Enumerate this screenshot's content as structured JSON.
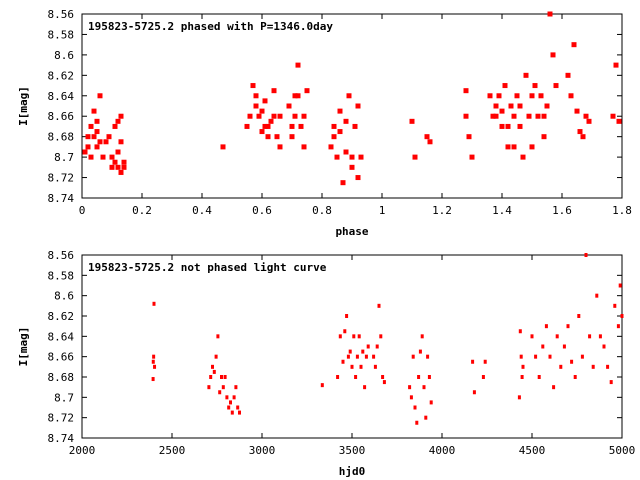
{
  "chart_data": [
    {
      "type": "scatter",
      "title": "195823-5725.2 phased with P=1346.0day",
      "xlabel": "phase",
      "ylabel": "I[mag]",
      "xlim": [
        0,
        1.8
      ],
      "ylim": [
        8.74,
        8.56
      ],
      "y_inverted": true,
      "xticks": [
        "0",
        "0.2",
        "0.4",
        "0.6",
        "0.8",
        "1",
        "1.2",
        "1.4",
        "1.6",
        "1.8"
      ],
      "yticks": [
        "8.56",
        "8.58",
        "8.6",
        "8.62",
        "8.64",
        "8.66",
        "8.68",
        "8.7",
        "8.72",
        "8.74"
      ],
      "grid": false,
      "marker": "filled-square",
      "color": "#ff0000",
      "series": [
        {
          "x": [
            0.01,
            0.02,
            0.02,
            0.03,
            0.03,
            0.04,
            0.04,
            0.05,
            0.05,
            0.05,
            0.06,
            0.06,
            0.07,
            0.08,
            0.09,
            0.1,
            0.1,
            0.11,
            0.11,
            0.12,
            0.12,
            0.12,
            0.13,
            0.13,
            0.13,
            0.14,
            0.14,
            0.47,
            0.55,
            0.56,
            0.57,
            0.58,
            0.58,
            0.59,
            0.6,
            0.6,
            0.61,
            0.61,
            0.62,
            0.62,
            0.63,
            0.64,
            0.64,
            0.65,
            0.66,
            0.66,
            0.69,
            0.7,
            0.7,
            0.71,
            0.71,
            0.72,
            0.72,
            0.73,
            0.74,
            0.74,
            0.75,
            0.83,
            0.84,
            0.84,
            0.85,
            0.86,
            0.86,
            0.87,
            0.88,
            0.88,
            0.89,
            0.9,
            0.9,
            0.91,
            0.92,
            0.92,
            0.93,
            1.1,
            1.11,
            1.15,
            1.16,
            1.28,
            1.28,
            1.29,
            1.3,
            1.36,
            1.37,
            1.38,
            1.38,
            1.39,
            1.4,
            1.4,
            1.41,
            1.42,
            1.42,
            1.43,
            1.44,
            1.44,
            1.45,
            1.46,
            1.46,
            1.47,
            1.48,
            1.49,
            1.5,
            1.5,
            1.51,
            1.52,
            1.53,
            1.54,
            1.54,
            1.55,
            1.56,
            1.57,
            1.58,
            1.62,
            1.63,
            1.64,
            1.65,
            1.66,
            1.67,
            1.68,
            1.69,
            1.77,
            1.78,
            1.79
          ],
          "y": [
            8.695,
            8.69,
            8.68,
            8.67,
            8.7,
            8.655,
            8.68,
            8.675,
            8.665,
            8.69,
            8.64,
            8.685,
            8.7,
            8.685,
            8.68,
            8.7,
            8.71,
            8.67,
            8.705,
            8.695,
            8.665,
            8.71,
            8.66,
            8.685,
            8.715,
            8.705,
            8.71,
            8.69,
            8.67,
            8.66,
            8.63,
            8.65,
            8.64,
            8.66,
            8.655,
            8.675,
            8.67,
            8.645,
            8.67,
            8.68,
            8.665,
            8.635,
            8.66,
            8.68,
            8.66,
            8.69,
            8.65,
            8.67,
            8.68,
            8.64,
            8.66,
            8.61,
            8.64,
            8.67,
            8.66,
            8.69,
            8.635,
            8.69,
            8.67,
            8.68,
            8.7,
            8.655,
            8.675,
            8.725,
            8.665,
            8.695,
            8.64,
            8.7,
            8.71,
            8.67,
            8.72,
            8.65,
            8.7,
            8.665,
            8.7,
            8.68,
            8.685,
            8.635,
            8.66,
            8.68,
            8.7,
            8.64,
            8.66,
            8.66,
            8.65,
            8.64,
            8.67,
            8.655,
            8.63,
            8.67,
            8.69,
            8.65,
            8.66,
            8.69,
            8.64,
            8.67,
            8.65,
            8.7,
            8.62,
            8.66,
            8.64,
            8.69,
            8.63,
            8.66,
            8.64,
            8.68,
            8.66,
            8.65,
            8.56,
            8.6,
            8.63,
            8.62,
            8.64,
            8.59,
            8.655,
            8.675,
            8.68,
            8.66,
            8.665,
            8.66,
            8.61,
            8.665
          ]
        }
      ]
    },
    {
      "type": "scatter",
      "title": "195823-5725.2 not phased light curve",
      "xlabel": "hjd0",
      "ylabel": "I[mag]",
      "xlim": [
        2000,
        5000
      ],
      "ylim": [
        8.74,
        8.56
      ],
      "y_inverted": true,
      "xticks": [
        "2000",
        "2500",
        "3000",
        "3500",
        "4000",
        "4500",
        "5000"
      ],
      "yticks": [
        "8.56",
        "8.58",
        "8.6",
        "8.62",
        "8.64",
        "8.66",
        "8.68",
        "8.7",
        "8.72",
        "8.74"
      ],
      "grid": false,
      "marker": "small-dot",
      "color": "#ff0000",
      "series": [
        {
          "x": [
            2395,
            2396,
            2398,
            2400,
            2403,
            2705,
            2715,
            2725,
            2735,
            2745,
            2755,
            2765,
            2775,
            2785,
            2795,
            2805,
            2815,
            2825,
            2835,
            2845,
            2855,
            2865,
            2875,
            3335,
            3420,
            3435,
            3450,
            3460,
            3470,
            3480,
            3490,
            3500,
            3510,
            3520,
            3530,
            3540,
            3550,
            3560,
            3570,
            3580,
            3590,
            3620,
            3630,
            3640,
            3650,
            3660,
            3670,
            3680,
            3820,
            3830,
            3840,
            3850,
            3860,
            3870,
            3880,
            3890,
            3900,
            3910,
            3920,
            3930,
            3940,
            4170,
            4180,
            4230,
            4240,
            4430,
            4435,
            4440,
            4445,
            4450,
            4500,
            4520,
            4540,
            4560,
            4580,
            4600,
            4620,
            4640,
            4660,
            4680,
            4700,
            4720,
            4740,
            4760,
            4780,
            4800,
            4820,
            4840,
            4860,
            4880,
            4900,
            4920,
            4940,
            4960,
            4980,
            4990,
            5000
          ],
          "y": [
            8.682,
            8.665,
            8.66,
            8.608,
            8.67,
            8.69,
            8.68,
            8.67,
            8.675,
            8.66,
            8.64,
            8.695,
            8.68,
            8.69,
            8.68,
            8.7,
            8.71,
            8.705,
            8.715,
            8.7,
            8.69,
            8.71,
            8.715,
            8.688,
            8.68,
            8.64,
            8.665,
            8.635,
            8.62,
            8.66,
            8.655,
            8.67,
            8.64,
            8.68,
            8.66,
            8.64,
            8.67,
            8.655,
            8.69,
            8.66,
            8.65,
            8.66,
            8.67,
            8.65,
            8.61,
            8.64,
            8.68,
            8.685,
            8.69,
            8.7,
            8.66,
            8.71,
            8.725,
            8.68,
            8.655,
            8.64,
            8.69,
            8.72,
            8.66,
            8.68,
            8.705,
            8.665,
            8.695,
            8.68,
            8.665,
            8.7,
            8.635,
            8.66,
            8.68,
            8.67,
            8.64,
            8.66,
            8.68,
            8.65,
            8.63,
            8.66,
            8.69,
            8.64,
            8.67,
            8.65,
            8.63,
            8.665,
            8.68,
            8.62,
            8.66,
            8.56,
            8.64,
            8.67,
            8.6,
            8.64,
            8.65,
            8.67,
            8.685,
            8.61,
            8.63,
            8.59,
            8.62
          ]
        }
      ]
    }
  ]
}
